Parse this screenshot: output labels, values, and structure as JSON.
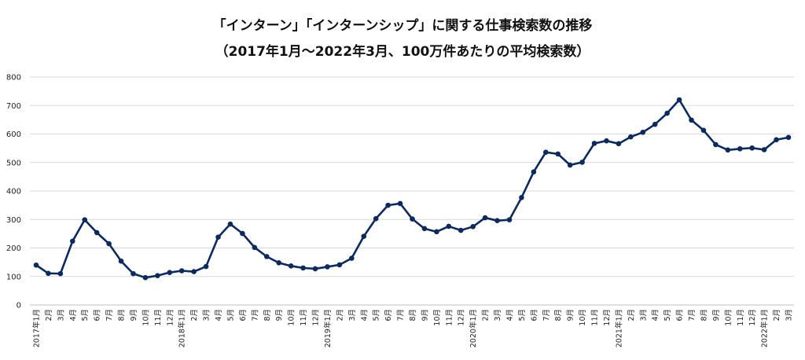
{
  "chart_data": {
    "type": "line",
    "title": "「インターン」「インターンシップ」に関する仕事検索数の推移",
    "subtitle": "（2017年1月〜2022年3月、100万件あたりの平均検索数）",
    "xlabel": "",
    "ylabel": "",
    "ylim": [
      0,
      800
    ],
    "yticks": [
      0,
      100,
      200,
      300,
      400,
      500,
      600,
      700,
      800
    ],
    "grid": true,
    "legend": "none",
    "colors": {
      "line": "#0d2a5e",
      "grid": "#d9d9d9",
      "axis": "#bfbfbf"
    },
    "categories": [
      "2017年1月",
      "2月",
      "3月",
      "4月",
      "5月",
      "6月",
      "7月",
      "8月",
      "9月",
      "10月",
      "11月",
      "12月",
      "2018年1月",
      "2月",
      "3月",
      "4月",
      "5月",
      "6月",
      "7月",
      "8月",
      "9月",
      "10月",
      "11月",
      "12月",
      "2019年1月",
      "2月",
      "3月",
      "4月",
      "5月",
      "6月",
      "7月",
      "8月",
      "9月",
      "10月",
      "11月",
      "12月",
      "2020年1月",
      "2月",
      "3月",
      "4月",
      "5月",
      "6月",
      "7月",
      "8月",
      "9月",
      "10月",
      "11月",
      "12月",
      "2021年1月",
      "2月",
      "3月",
      "4月",
      "5月",
      "6月",
      "7月",
      "8月",
      "9月",
      "10月",
      "11月",
      "12月",
      "2022年1月",
      "2月",
      "3月"
    ],
    "series": [
      {
        "values": [
          140,
          111,
          110,
          224,
          299,
          254,
          215,
          154,
          110,
          96,
          103,
          114,
          120,
          117,
          135,
          238,
          284,
          251,
          202,
          170,
          148,
          137,
          130,
          127,
          134,
          141,
          164,
          241,
          303,
          350,
          356,
          302,
          268,
          257,
          276,
          262,
          275,
          306,
          296,
          299,
          377,
          467,
          536,
          530,
          491,
          501,
          567,
          576,
          566,
          590,
          606,
          634,
          673,
          720,
          649,
          613,
          563,
          544,
          548,
          551,
          545,
          580,
          588
        ]
      }
    ]
  }
}
